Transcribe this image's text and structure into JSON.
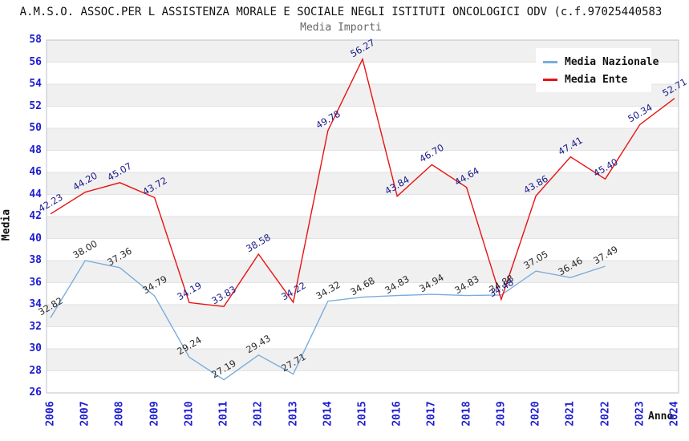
{
  "header": {
    "title": "A.M.S.O. ASSOC.PER L ASSISTENZA MORALE E SOCIALE NEGLI ISTITUTI ONCOLOGICI ODV (c.f.97025440583",
    "subtitle": "Media Importi"
  },
  "chart_data": {
    "type": "line",
    "title": "Media Importi",
    "xlabel": "Anno",
    "ylabel": "Media",
    "x": [
      2006,
      2007,
      2008,
      2009,
      2010,
      2011,
      2012,
      2013,
      2014,
      2015,
      2016,
      2017,
      2018,
      2019,
      2020,
      2021,
      2022,
      2023,
      2024
    ],
    "series": [
      {
        "name": "Media Nazionale",
        "color": "#79ADDC",
        "label_color": "#2b2b2b",
        "values": [
          32.82,
          38.0,
          37.36,
          34.79,
          29.24,
          27.19,
          29.43,
          27.71,
          34.32,
          34.68,
          34.83,
          34.94,
          34.83,
          34.88,
          37.05,
          36.46,
          37.49,
          null,
          null
        ]
      },
      {
        "name": "Media Ente",
        "color": "#E81212",
        "label_color": "#1a1a8c",
        "values": [
          42.23,
          44.2,
          45.07,
          43.72,
          34.19,
          33.83,
          38.58,
          34.22,
          49.78,
          56.27,
          43.84,
          46.7,
          44.64,
          34.48,
          43.86,
          47.41,
          45.4,
          50.34,
          52.71
        ]
      }
    ],
    "ylim": [
      26,
      58
    ],
    "y_tick_step": 2,
    "grid": true,
    "legend_position": "top-right",
    "band_colors": {
      "gray": "#F0F0F0",
      "white": "#FFFFFF"
    },
    "gridline_color": "#E2E2E2",
    "border_color": "#BDC1CC",
    "tick_label_color": "#1d1dd0"
  }
}
